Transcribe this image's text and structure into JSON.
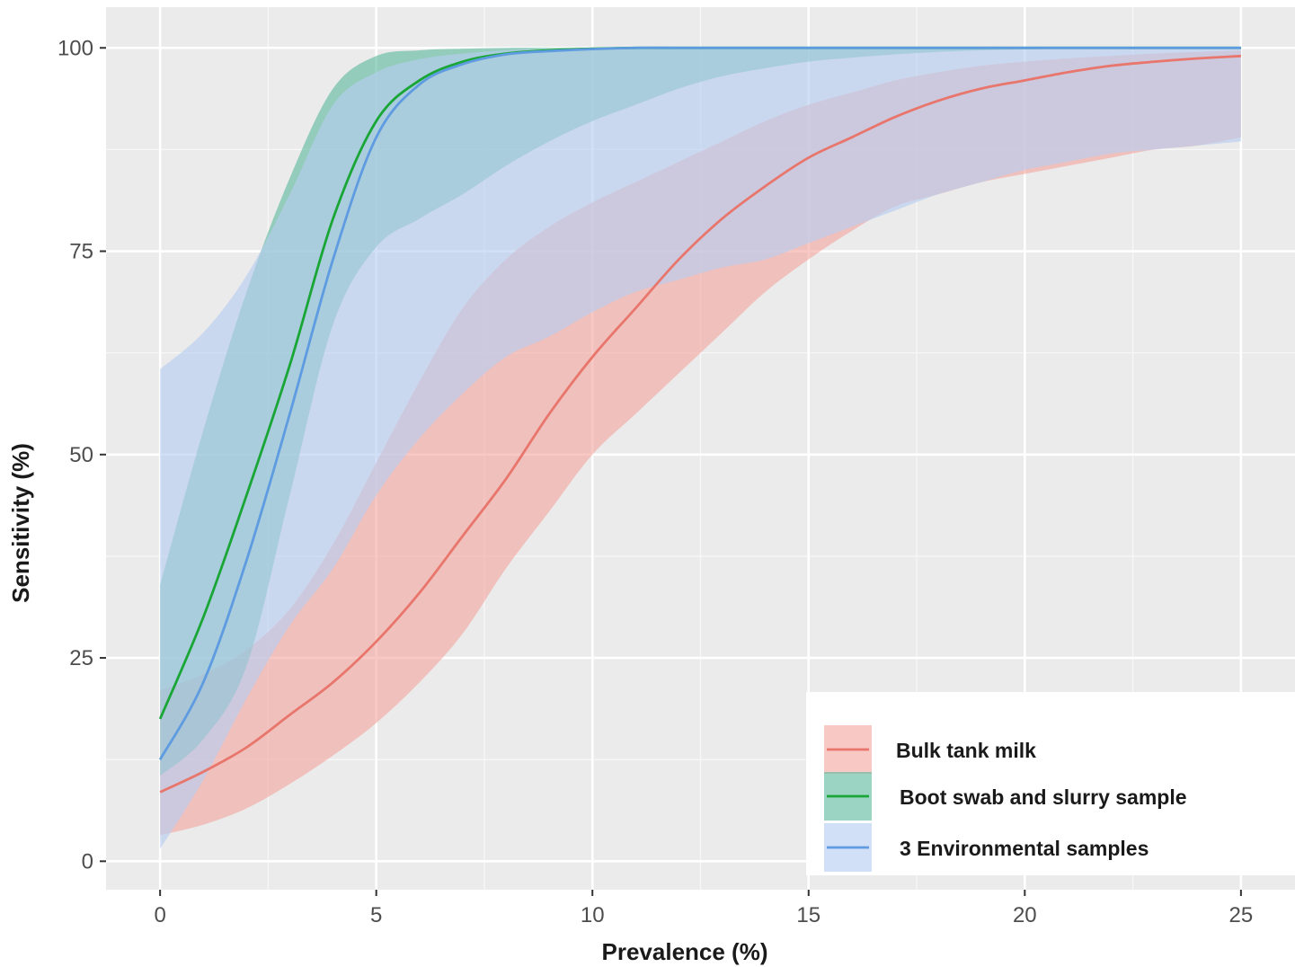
{
  "chart_data": {
    "type": "line",
    "title": "",
    "xlabel": "Prevalence (%)",
    "ylabel": "Sensitivity (%)",
    "xlim": [
      -1.25,
      26.25
    ],
    "ylim": [
      -3.5,
      105
    ],
    "x_ticks": [
      "0",
      "5",
      "10",
      "15",
      "20",
      "25"
    ],
    "y_ticks": [
      "0",
      "25",
      "50",
      "75",
      "100"
    ],
    "grid": true,
    "legend_position": "bottom-right",
    "x": [
      0,
      1,
      2,
      3,
      4,
      5,
      6,
      7,
      8,
      9,
      10,
      11,
      12,
      13,
      14,
      15,
      16,
      17,
      18,
      19,
      20,
      21,
      22,
      23,
      24,
      25
    ],
    "series": [
      {
        "name": "Bulk tank milk",
        "color": "#e8766c",
        "band_color": "#f4a6a0",
        "values": [
          8.5,
          11,
          14,
          18,
          22,
          27,
          33,
          40,
          47,
          55,
          62,
          68,
          74,
          79,
          83,
          86.5,
          89,
          91.5,
          93.5,
          95,
          96,
          97,
          97.8,
          98.3,
          98.7,
          99
        ],
        "lower": [
          3.2,
          4.5,
          6.5,
          9.5,
          13,
          17,
          22,
          28,
          36,
          43,
          50,
          55,
          60,
          65,
          70,
          74,
          77.5,
          80.5,
          82,
          83.5,
          84.5,
          85.5,
          86.5,
          87.5,
          88,
          89
        ],
        "upper": [
          21,
          23,
          26,
          31,
          39,
          49,
          59,
          68,
          74,
          78,
          81,
          83.5,
          86,
          88.5,
          91,
          93,
          94.5,
          96,
          97,
          97.8,
          98.3,
          98.7,
          99,
          99.3,
          99.5,
          99.7
        ]
      },
      {
        "name": "Boot swab and slurry sample",
        "color": "#1aa636",
        "band_color": "#5dba9e",
        "values": [
          17.5,
          30,
          45,
          61,
          79,
          91,
          96,
          98.3,
          99.3,
          99.7,
          99.9,
          100,
          100,
          100,
          100,
          100,
          100,
          100,
          100,
          100,
          100,
          100,
          100,
          100,
          100,
          100
        ],
        "lower": [
          10.5,
          15,
          24,
          45,
          66,
          75.5,
          79,
          82,
          85.5,
          88.5,
          91,
          93,
          95,
          96.5,
          97.5,
          98.3,
          98.8,
          99.2,
          99.5,
          99.7,
          99.8,
          99.9,
          99.95,
          100,
          100,
          100
        ],
        "upper": [
          34,
          53,
          70,
          84,
          95,
          99,
          99.7,
          99.9,
          100,
          100,
          100,
          100,
          100,
          100,
          100,
          100,
          100,
          100,
          100,
          100,
          100,
          100,
          100,
          100,
          100,
          100
        ]
      },
      {
        "name": "3 Environmental samples",
        "color": "#5e9be0",
        "band_color": "#b7cdf2",
        "values": [
          12.5,
          22,
          37,
          55,
          74,
          89,
          95.5,
          98,
          99.2,
          99.6,
          99.85,
          100,
          100,
          100,
          100,
          100,
          100,
          100,
          100,
          100,
          100,
          100,
          100,
          100,
          100,
          100
        ],
        "lower": [
          1.5,
          10,
          20,
          29,
          36,
          45,
          52,
          57.5,
          62,
          64.5,
          67.5,
          70,
          71.5,
          73,
          74,
          76,
          78,
          80,
          82,
          83.5,
          85,
          86,
          87,
          87.5,
          88,
          88.5
        ],
        "upper": [
          60.5,
          65,
          72,
          82,
          93,
          97,
          98.6,
          99.3,
          99.7,
          99.85,
          99.95,
          100,
          100,
          100,
          100,
          100,
          100,
          100,
          100,
          100,
          100,
          100,
          100,
          100,
          100,
          100
        ]
      }
    ]
  }
}
